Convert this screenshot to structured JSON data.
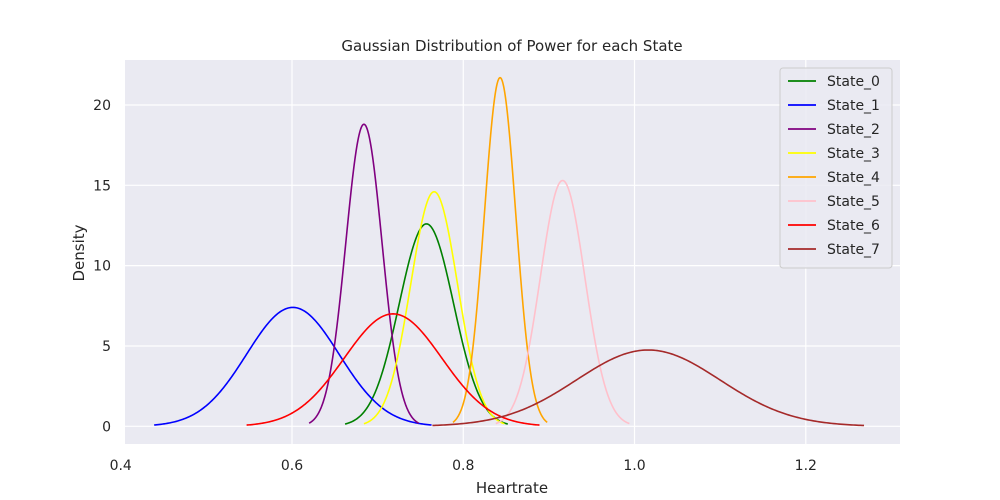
{
  "chart_data": {
    "type": "line",
    "title": "Gaussian Distribution of Power for each State",
    "xlabel": "Heartrate",
    "ylabel": "Density",
    "xlim": [
      0.405,
      1.31
    ],
    "ylim": [
      -1.1,
      22.8
    ],
    "xticks": [
      0.4,
      0.6,
      0.8,
      1.0,
      1.2
    ],
    "xtick_labels": [
      "0.4",
      "0.6",
      "0.8",
      "1.0",
      "1.2"
    ],
    "yticks": [
      0,
      5,
      10,
      15,
      20
    ],
    "ytick_labels": [
      "0",
      "5",
      "10",
      "15",
      "20"
    ],
    "grid": true,
    "legend_position": "top-right",
    "series": [
      {
        "name": "State_0",
        "color": "#008000",
        "mean": 0.757,
        "std": 0.0317,
        "x_range": [
          0.662,
          0.852
        ],
        "peak_density": 12.6
      },
      {
        "name": "State_1",
        "color": "#0000ff",
        "mean": 0.601,
        "std": 0.054,
        "x_range": [
          0.439,
          0.763
        ],
        "peak_density": 7.4
      },
      {
        "name": "State_2",
        "color": "#800080",
        "mean": 0.684,
        "std": 0.0212,
        "x_range": [
          0.62,
          0.748
        ],
        "peak_density": 18.8
      },
      {
        "name": "State_3",
        "color": "#ffff00",
        "mean": 0.766,
        "std": 0.0273,
        "x_range": [
          0.684,
          0.848
        ],
        "peak_density": 14.6
      },
      {
        "name": "State_4",
        "color": "#ffa500",
        "mean": 0.843,
        "std": 0.0184,
        "x_range": [
          0.788,
          0.898
        ],
        "peak_density": 21.7
      },
      {
        "name": "State_5",
        "color": "#ffc0cb",
        "mean": 0.916,
        "std": 0.026,
        "x_range": [
          0.838,
          0.994
        ],
        "peak_density": 15.3
      },
      {
        "name": "State_6",
        "color": "#ff0000",
        "mean": 0.718,
        "std": 0.057,
        "x_range": [
          0.547,
          0.889
        ],
        "peak_density": 7.0
      },
      {
        "name": "State_7",
        "color": "#a52a2a",
        "mean": 1.016,
        "std": 0.084,
        "x_range": [
          0.764,
          1.268
        ],
        "peak_density": 4.75
      }
    ]
  }
}
